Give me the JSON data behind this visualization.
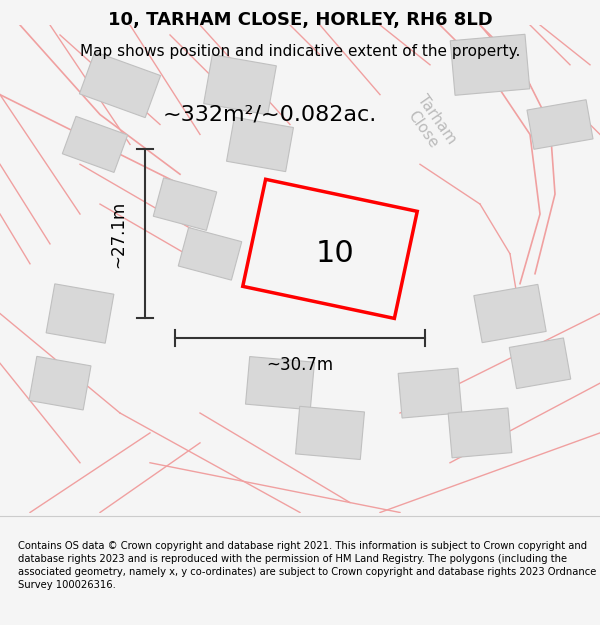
{
  "title": "10, TARHAM CLOSE, HORLEY, RH6 8LD",
  "subtitle": "Map shows position and indicative extent of the property.",
  "area_text": "~332m²/~0.082ac.",
  "label_number": "10",
  "dim_width": "~30.7m",
  "dim_height": "~27.1m",
  "street_label": "Tarham\nClose",
  "footer": "Contains OS data © Crown copyright and database right 2021. This information is subject to Crown copyright and database rights 2023 and is reproduced with the permission of HM Land Registry. The polygons (including the associated geometry, namely x, y co-ordinates) are subject to Crown copyright and database rights 2023 Ordnance Survey 100026316.",
  "bg_color": "#f5f5f5",
  "map_bg": "#f0eeee",
  "building_color": "#d8d8d8",
  "road_line_color": "#f0a0a0",
  "highlight_color": "#ff0000",
  "dim_line_color": "#333333",
  "title_color": "#000000",
  "footer_color": "#000000",
  "footer_bg": "#ffffff"
}
